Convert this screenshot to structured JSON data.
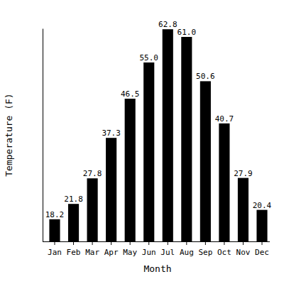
{
  "chart_data": {
    "type": "bar",
    "x_label": "Month",
    "y_label": "Temperature (F)",
    "categories": [
      "Jan",
      "Feb",
      "Mar",
      "Apr",
      "May",
      "Jun",
      "Jul",
      "Aug",
      "Sep",
      "Oct",
      "Nov",
      "Dec"
    ],
    "values": [
      18.2,
      21.8,
      27.8,
      37.3,
      46.5,
      55.0,
      62.8,
      61.0,
      50.6,
      40.7,
      27.9,
      20.4
    ],
    "value_labels": [
      "18.2",
      "21.8",
      "27.8",
      "37.3",
      "46.5",
      "55.0",
      "62.8",
      "61.0",
      "50.6",
      "40.7",
      "27.9",
      "20.4"
    ],
    "color": "#000000",
    "ylim": [
      13,
      63
    ],
    "data_labels": true,
    "tick_labels": "x"
  }
}
